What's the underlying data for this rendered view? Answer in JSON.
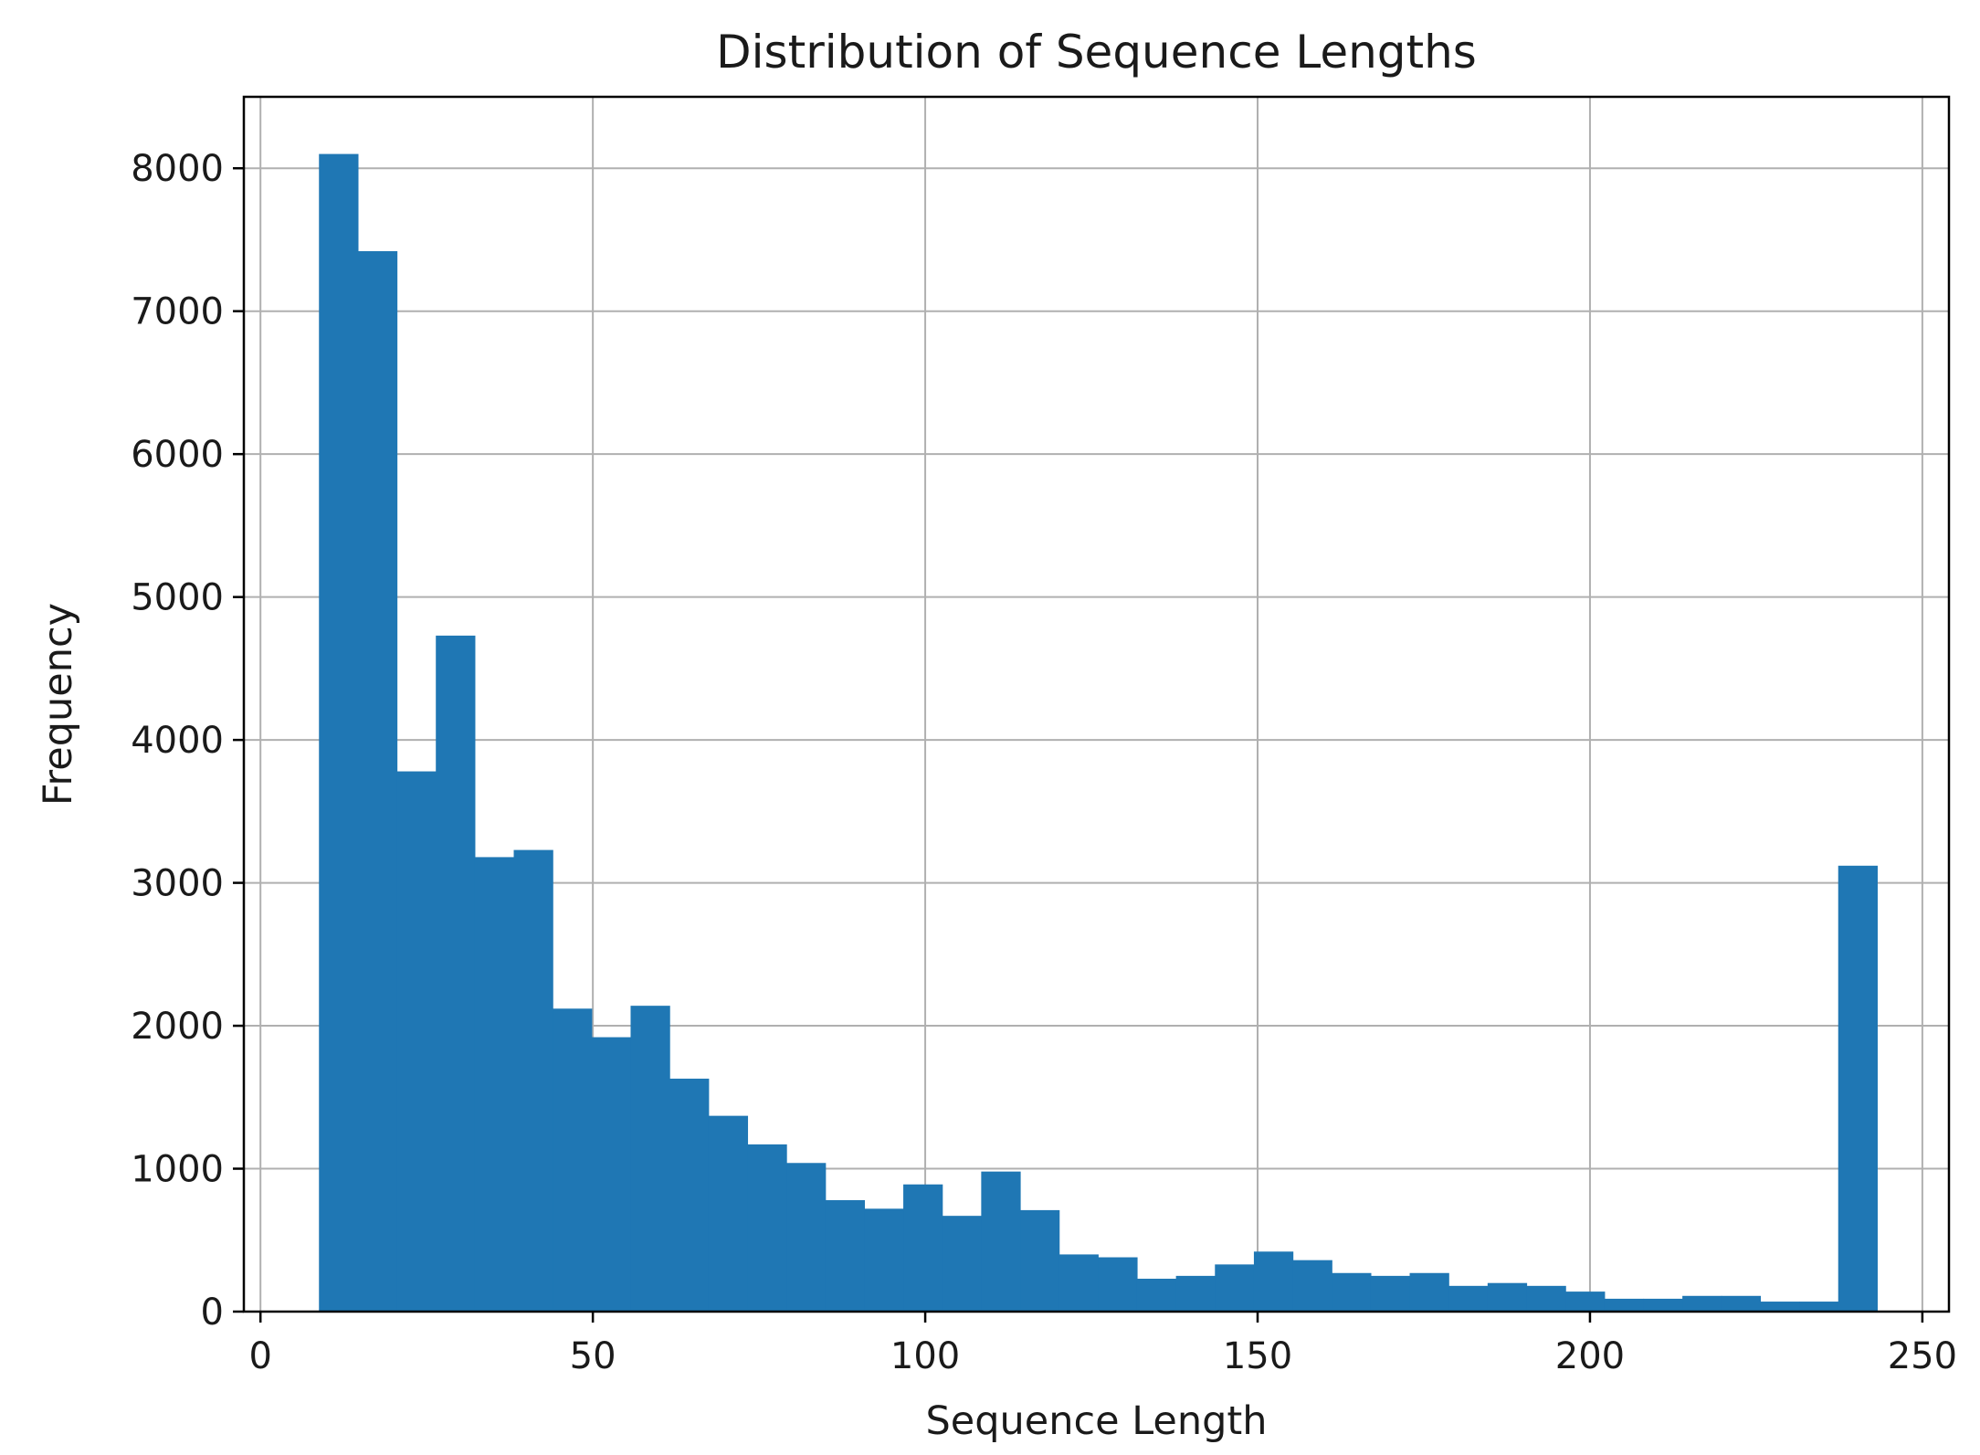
{
  "chart_data": {
    "type": "bar",
    "title": "Distribution of Sequence Lengths",
    "xlabel": "Sequence Length",
    "ylabel": "Frequency",
    "xlim": [
      -2.5,
      254
    ],
    "ylim": [
      0,
      8500
    ],
    "xticks": [
      0,
      50,
      100,
      150,
      200,
      250
    ],
    "yticks": [
      0,
      1000,
      2000,
      3000,
      4000,
      5000,
      6000,
      7000,
      8000
    ],
    "grid": true,
    "bar_color": "#1f77b4",
    "bins": {
      "start": 8.8,
      "width": 5.86,
      "values": [
        8100,
        7420,
        3780,
        4730,
        3180,
        3230,
        2120,
        1920,
        2140,
        1630,
        1370,
        1170,
        1040,
        780,
        720,
        890,
        670,
        980,
        710,
        400,
        380,
        230,
        250,
        330,
        420,
        360,
        270,
        250,
        270,
        180,
        200,
        180,
        140,
        90,
        90,
        110,
        110,
        70,
        70,
        3120
      ]
    }
  }
}
